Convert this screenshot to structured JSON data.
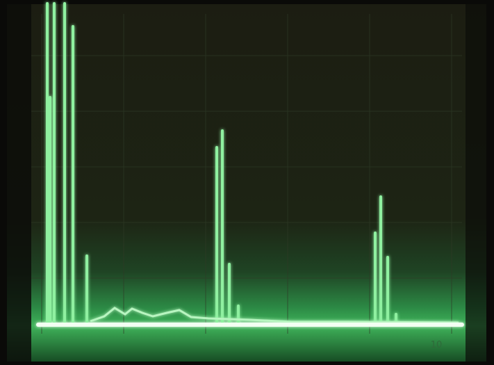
{
  "screen": {
    "scale_label": "10"
  }
}
